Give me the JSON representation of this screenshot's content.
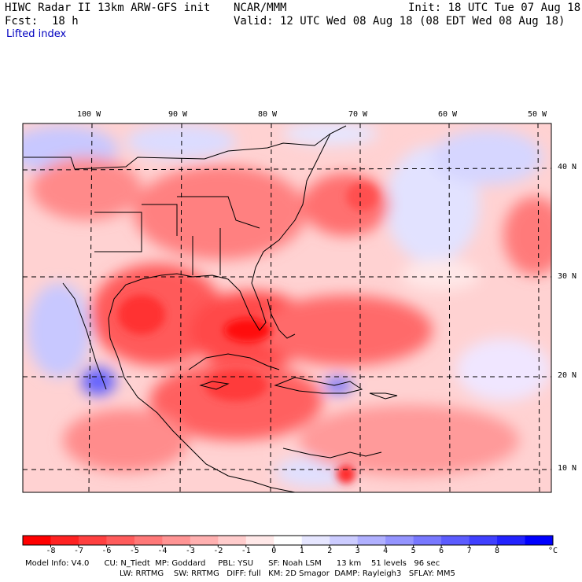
{
  "header": {
    "title": "HIWC Radar II 13km ARW-GFS init",
    "org": "NCAR/MMM",
    "init": "Init: 18 UTC Tue 07 Aug 18",
    "fcst_label": "Fcst:",
    "fcst_value": "18 h",
    "valid": "Valid: 12 UTC Wed 08 Aug 18 (08 EDT Wed 08 Aug 18)",
    "field": "Lifted index"
  },
  "map": {
    "lon_labels": [
      "100 W",
      "90 W",
      "80 W",
      "70 W",
      "60 W",
      "50 W"
    ],
    "lat_labels": [
      "40 N",
      "30 N",
      "20 N",
      "10 N"
    ]
  },
  "colorbar": {
    "ticks": [
      "-8",
      "-7",
      "-6",
      "-5",
      "-4",
      "-3",
      "-2",
      "-1",
      "0",
      "1",
      "2",
      "3",
      "4",
      "5",
      "6",
      "7",
      "8"
    ],
    "unit": "°C",
    "colors": [
      "#ff0000",
      "#ff2222",
      "#ff4040",
      "#ff5c5c",
      "#ff7878",
      "#ff9494",
      "#ffb0b0",
      "#ffcccc",
      "#ffe8e8",
      "#ffffff",
      "#e6e6ff",
      "#ccccff",
      "#b0b0ff",
      "#9494ff",
      "#7878ff",
      "#5c5cff",
      "#4040ff",
      "#2222ff",
      "#0000ff"
    ]
  },
  "footer": {
    "line1": "Model Info: V4.0      CU: N_Tiedt  MP: Goddard     PBL: YSU      SF: Noah LSM      13 km    51 levels   96 sec",
    "line2": "LW: RRTMG    SW: RRTMG   DIFF: full   KM: 2D Smagor  DAMP: Rayleigh3   SFLAY: MM5"
  }
}
